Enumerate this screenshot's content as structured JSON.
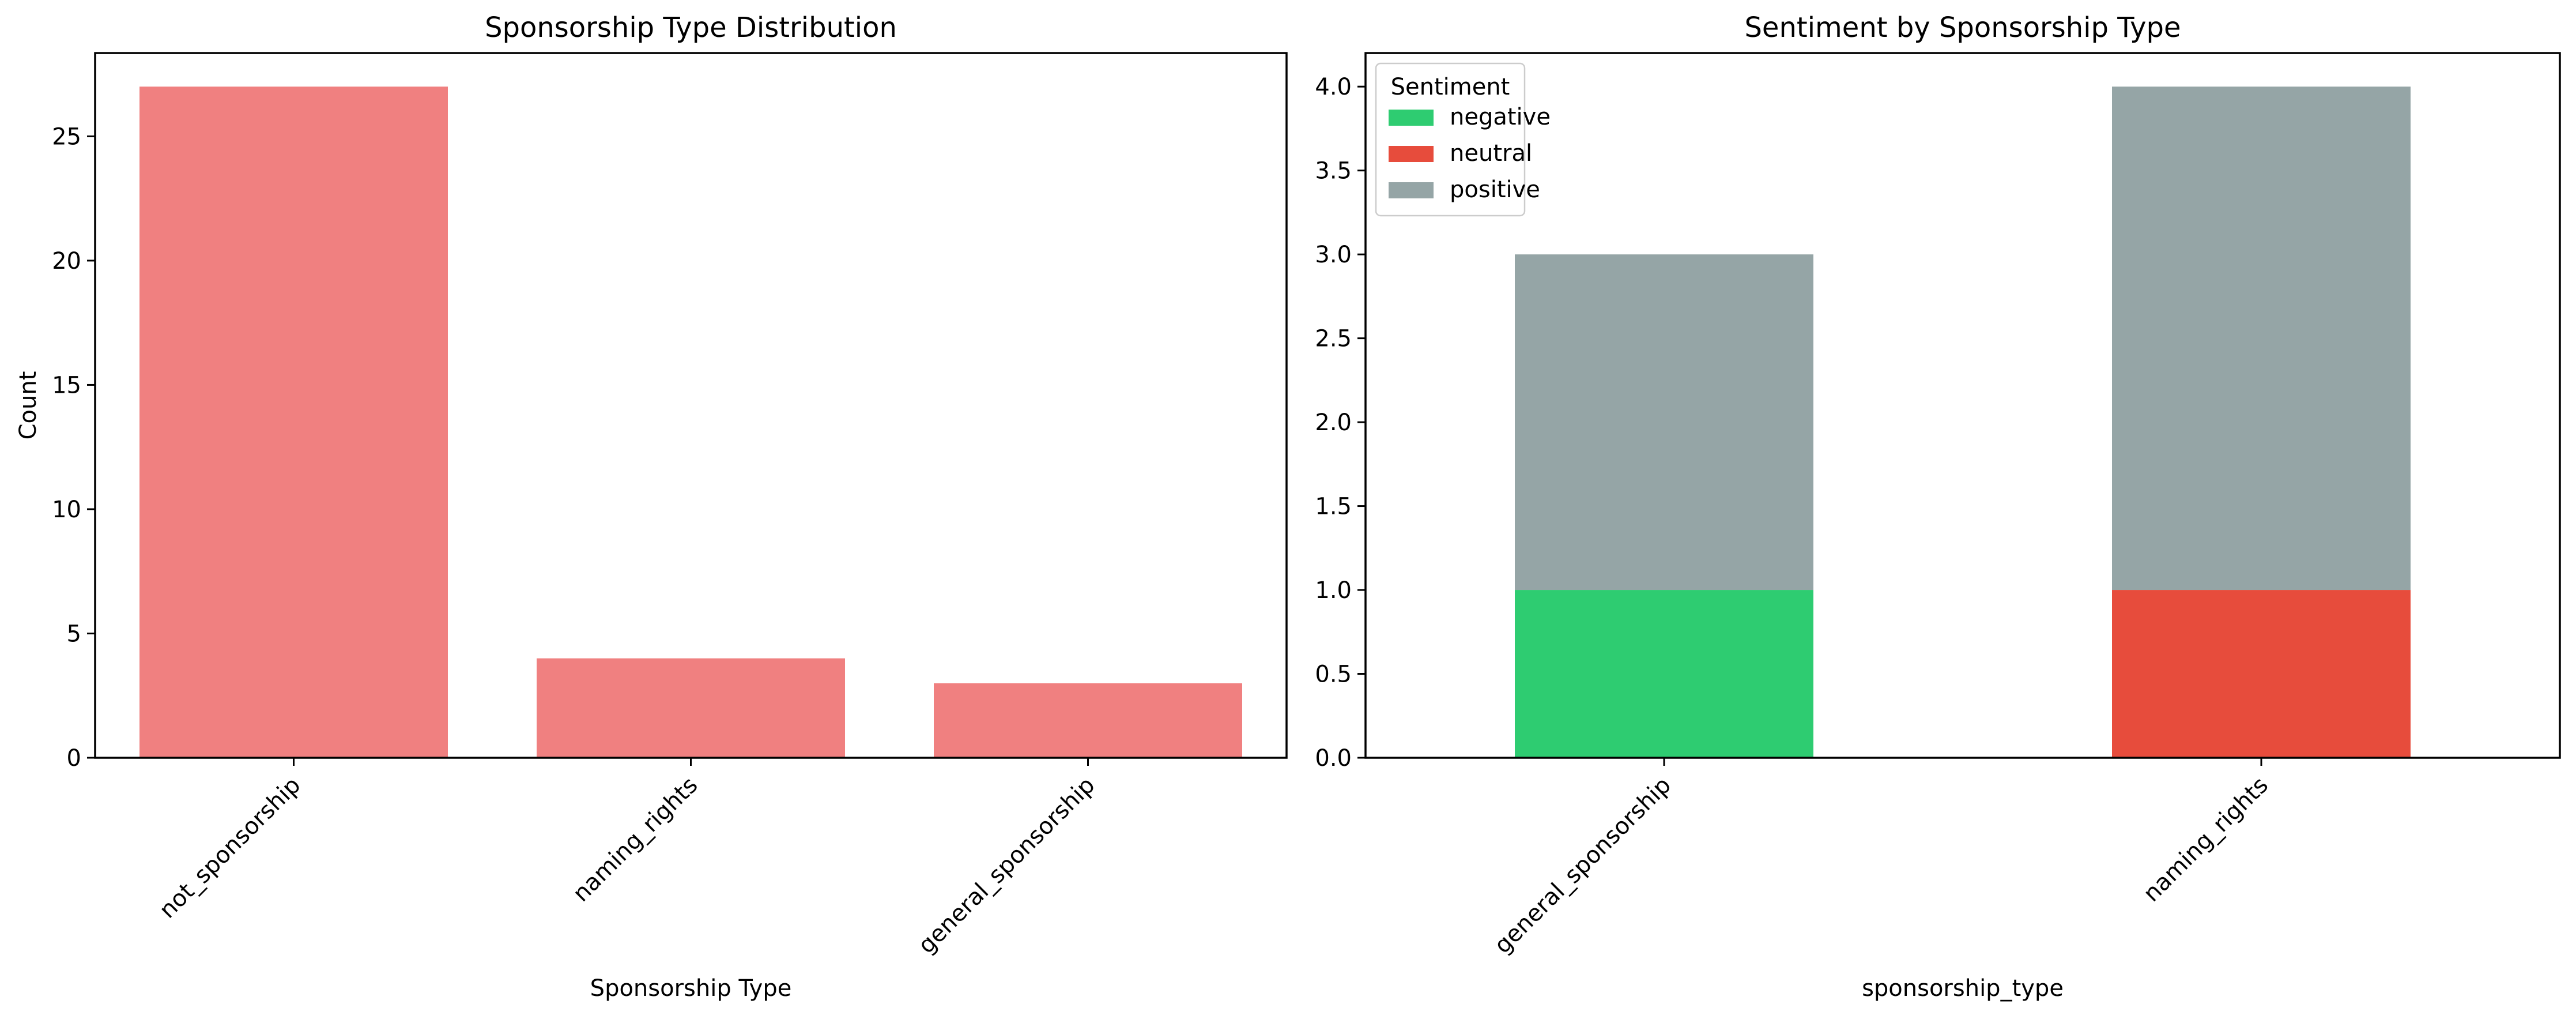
{
  "chart_data": [
    {
      "type": "bar",
      "title": "Sponsorship Type Distribution",
      "xlabel": "Sponsorship Type",
      "ylabel": "Count",
      "categories": [
        "not_sponsorship",
        "naming_rights",
        "general_sponsorship"
      ],
      "values": [
        27,
        4,
        3
      ],
      "ylim": [
        0,
        28.35
      ],
      "yticks": [
        0,
        5,
        10,
        15,
        20,
        25
      ],
      "ytick_labels": [
        "0",
        "5",
        "10",
        "15",
        "20",
        "25"
      ],
      "color": "#f08080",
      "grid": false
    },
    {
      "type": "bar",
      "stacked": true,
      "title": "Sentiment by Sponsorship Type",
      "xlabel": "sponsorship_type",
      "ylabel": "",
      "categories": [
        "general_sponsorship",
        "naming_rights"
      ],
      "series": [
        {
          "name": "negative",
          "values": [
            1,
            0
          ],
          "color": "#2ecc71"
        },
        {
          "name": "neutral",
          "values": [
            0,
            1
          ],
          "color": "#e74c3c"
        },
        {
          "name": "positive",
          "values": [
            2,
            3
          ],
          "color": "#95a5a6"
        }
      ],
      "ylim": [
        0,
        4.2
      ],
      "yticks": [
        0,
        0.5,
        1,
        1.5,
        2,
        2.5,
        3,
        3.5,
        4
      ],
      "ytick_labels": [
        "0.0",
        "0.5",
        "1.0",
        "1.5",
        "2.0",
        "2.5",
        "3.0",
        "3.5",
        "4.0"
      ],
      "legend": {
        "title": "Sentiment",
        "placement": "upper-left"
      },
      "grid": false
    }
  ]
}
